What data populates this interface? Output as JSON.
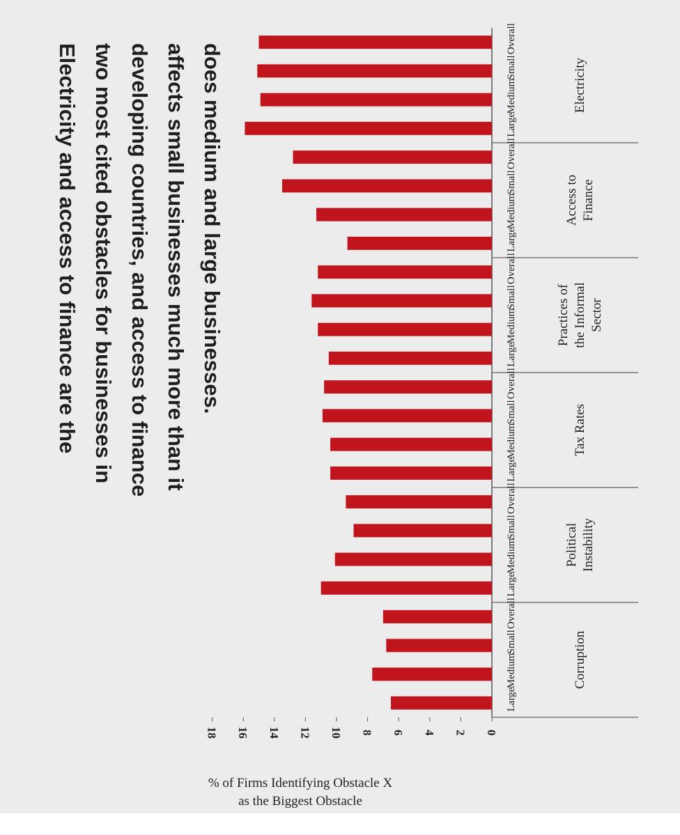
{
  "chart_data": {
    "type": "bar",
    "orientation": "horizontal",
    "title_lines": [
      "Electricity and access to finance are the",
      "two most cited obstacles for businesses in",
      "developing countries, and access to finance",
      "affects small businesses much more than it",
      "does medium and large businesses."
    ],
    "ylabel_lines": [
      "% of Firms Identifying Obstacle X",
      "as the Biggest Obstacle"
    ],
    "ylim": [
      0,
      18
    ],
    "yticks": [
      "0",
      "2",
      "4",
      "6",
      "8",
      "10",
      "12",
      "14",
      "16",
      "18"
    ],
    "subcategories": [
      "Overall",
      "Small",
      "Medium",
      "Large"
    ],
    "groups": [
      {
        "label_lines": [
          "Electricity"
        ],
        "values": [
          15.0,
          15.1,
          14.9,
          15.9
        ]
      },
      {
        "label_lines": [
          "Access to",
          "Finance"
        ],
        "values": [
          12.8,
          13.5,
          11.3,
          9.3
        ]
      },
      {
        "label_lines": [
          "Practices of",
          "the Informal",
          "Sector"
        ],
        "values": [
          11.2,
          11.6,
          11.2,
          10.5
        ]
      },
      {
        "label_lines": [
          "Tax Rates"
        ],
        "values": [
          10.8,
          10.9,
          10.4,
          10.4
        ]
      },
      {
        "label_lines": [
          "Political",
          "Instability"
        ],
        "values": [
          9.4,
          8.9,
          10.1,
          11.0
        ]
      },
      {
        "label_lines": [
          "Corruption"
        ],
        "values": [
          7.0,
          6.8,
          7.7,
          6.5
        ]
      }
    ],
    "bar_color": "#c0151c",
    "grid": false
  }
}
